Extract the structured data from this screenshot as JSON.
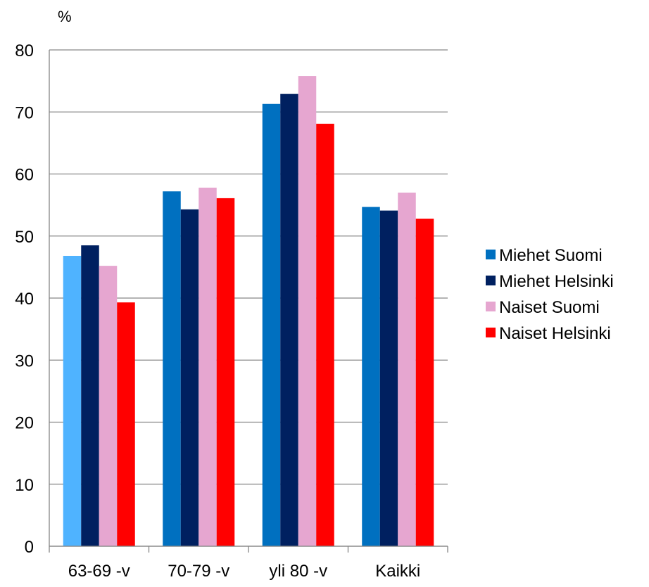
{
  "chart_data": {
    "type": "bar",
    "ylabel": "%",
    "ylim": [
      0,
      80
    ],
    "yticks": [
      0,
      10,
      20,
      30,
      40,
      50,
      60,
      70,
      80
    ],
    "grid": true,
    "legend": "right",
    "categories": [
      "63-69 -v",
      "70-79 -v",
      "yli 80 -v",
      "Kaikki"
    ],
    "series": [
      {
        "name": "Miehet Suomi",
        "color": "#0070C0",
        "values": [
          46.8,
          57.2,
          71.3,
          54.7
        ]
      },
      {
        "name": "Miehet Helsinki",
        "color": "#002060",
        "values": [
          48.5,
          54.3,
          72.9,
          54.1
        ]
      },
      {
        "name": "Naiset Suomi",
        "color": "#E6A6D0",
        "values": [
          45.2,
          57.8,
          75.8,
          57.0
        ]
      },
      {
        "name": "Naiset Helsinki",
        "color": "#FF0000",
        "values": [
          39.3,
          56.1,
          68.1,
          52.8
        ]
      }
    ],
    "highlight": {
      "series": 0,
      "category": 0,
      "color": "#4FB3FF"
    }
  }
}
